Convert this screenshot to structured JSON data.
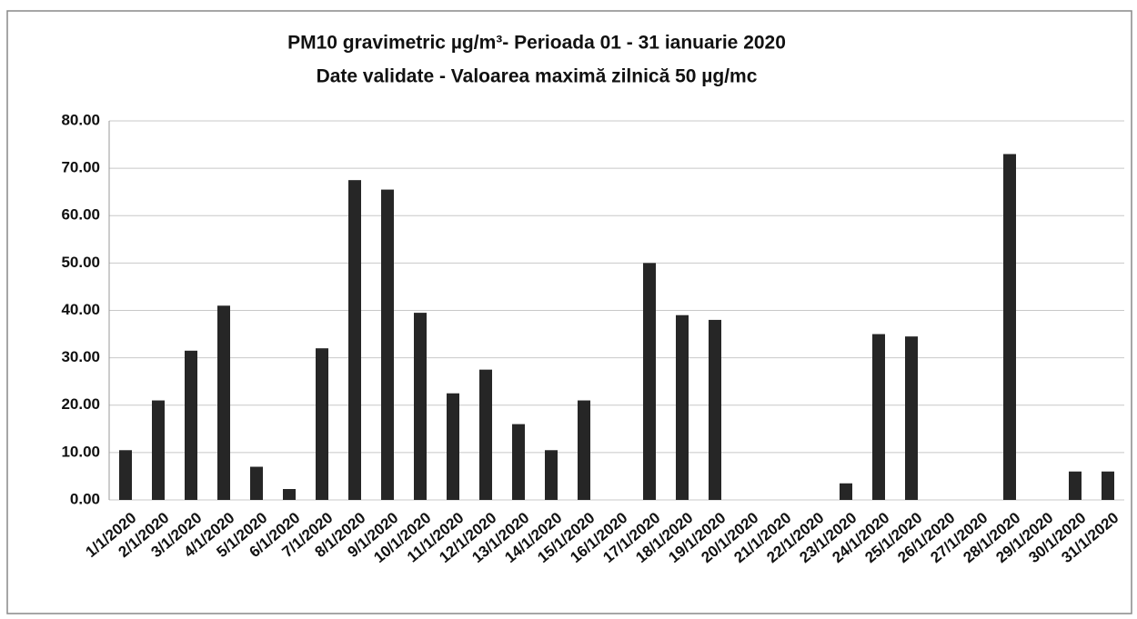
{
  "chart_data": {
    "type": "bar",
    "title": "PM10 gravimetric µg/m³- Perioada 01 - 31 ianuarie 2020",
    "subtitle": "Date validate -  Valoarea maximă zilnică 50 µg/mc",
    "categories": [
      "1/1/2020",
      "2/1/2020",
      "3/1/2020",
      "4/1/2020",
      "5/1/2020",
      "6/1/2020",
      "7/1/2020",
      "8/1/2020",
      "9/1/2020",
      "10/1/2020",
      "11/1/2020",
      "12/1/2020",
      "13/1/2020",
      "14/1/2020",
      "15/1/2020",
      "16/1/2020",
      "17/1/2020",
      "18/1/2020",
      "19/1/2020",
      "20/1/2020",
      "21/1/2020",
      "22/1/2020",
      "23/1/2020",
      "24/1/2020",
      "25/1/2020",
      "26/1/2020",
      "27/1/2020",
      "28/1/2020",
      "29/1/2020",
      "30/1/2020",
      "31/1/2020"
    ],
    "values": [
      10.5,
      21,
      31.5,
      41,
      7,
      2.3,
      32,
      67.5,
      65.5,
      39.5,
      22.5,
      27.5,
      16,
      10.5,
      21,
      null,
      50,
      39,
      38,
      null,
      null,
      null,
      3.5,
      35,
      34.5,
      null,
      null,
      73,
      null,
      6,
      6
    ],
    "color": "#262626",
    "ylim": [
      0,
      80
    ],
    "yticks": [
      {
        "value": 0,
        "label": "0.00"
      },
      {
        "value": 10,
        "label": "10.00"
      },
      {
        "value": 20,
        "label": "20.00"
      },
      {
        "value": 30,
        "label": "30.00"
      },
      {
        "value": 40,
        "label": "40.00"
      },
      {
        "value": 50,
        "label": "50.00"
      },
      {
        "value": 60,
        "label": "60.00"
      },
      {
        "value": 70,
        "label": "70.00"
      },
      {
        "value": 80,
        "label": "80.00"
      }
    ],
    "grid": true
  }
}
